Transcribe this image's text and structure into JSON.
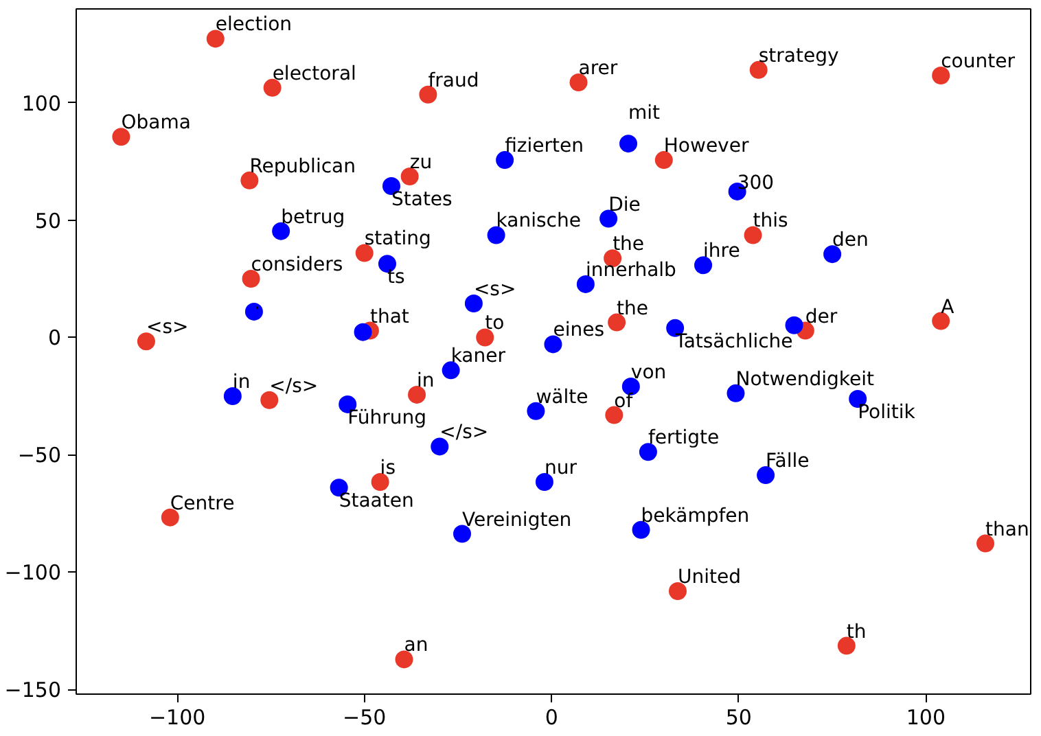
{
  "chart_data": {
    "type": "scatter",
    "marker": "circle",
    "grid": false,
    "xlim": [
      -127,
      128
    ],
    "ylim": [
      -152,
      140
    ],
    "xticks": [
      {
        "value": -100,
        "label": "−100"
      },
      {
        "value": -50,
        "label": "−50"
      },
      0,
      50,
      100
    ],
    "yticks": [
      {
        "value": -150,
        "label": "−150"
      },
      {
        "value": -100,
        "label": "−100"
      },
      {
        "value": -50,
        "label": "−50"
      },
      0,
      50,
      100
    ],
    "series": [
      {
        "color": "#e8382a",
        "x": [
          -89.8,
          -74.6,
          -33,
          -115,
          -80.7,
          -37.9,
          -50,
          -80.3,
          -108.3,
          -48.5,
          -17.8,
          7.2,
          55.3,
          104,
          30,
          53.8,
          16.3,
          17.4,
          67.8,
          104,
          -75.4,
          -36,
          -45.8,
          -101.9,
          -39.4,
          16.7,
          33.7,
          78.8,
          115.9
        ],
        "values": [
          127.3,
          106.4,
          103.5,
          85.5,
          66.9,
          68.6,
          36,
          25,
          -1.7,
          2.9,
          0,
          108.7,
          114,
          111.6,
          75.6,
          43.6,
          33.7,
          6.4,
          2.9,
          7,
          -26.7,
          -24.4,
          -61.6,
          -76.7,
          -137.2,
          -33.1,
          -108.1,
          -131.4,
          -87.8
        ]
      },
      {
        "color": "#0000ff",
        "x": [
          -12.5,
          -42.8,
          -72.3,
          -14.8,
          -43.9,
          -79.5,
          -20.8,
          -50.4,
          -26.9,
          0.4,
          20.5,
          49.6,
          15.2,
          40.5,
          9.1,
          75,
          33,
          64.8,
          -85.2,
          -54.5,
          -29.9,
          -4.2,
          21.2,
          49.2,
          81.8,
          25.8,
          57.2,
          -1.9,
          -56.8,
          -23.9,
          23.9
        ],
        "values": [
          75.6,
          64.5,
          45.3,
          43.6,
          31.4,
          11,
          14.5,
          2.3,
          -14,
          -2.9,
          82.6,
          62.2,
          50.6,
          30.8,
          22.7,
          35.5,
          4,
          5.2,
          -25,
          -28.5,
          -46.5,
          -31.4,
          -20.9,
          -23.8,
          -26.2,
          -48.8,
          -58.7,
          -61.6,
          -64,
          -83.7,
          -82
        ]
      }
    ],
    "annotations": [
      {
        "text": "election",
        "x": -89.8,
        "y": 127.3
      },
      {
        "text": "electoral",
        "x": -74.6,
        "y": 106.4
      },
      {
        "text": "fraud",
        "x": -33,
        "y": 103.5
      },
      {
        "text": "Obama",
        "x": -115,
        "y": 85.5
      },
      {
        "text": "Republican",
        "x": -80.7,
        "y": 66.9
      },
      {
        "text": "zu",
        "x": -37.9,
        "y": 68.6
      },
      {
        "text": "stating",
        "x": -50,
        "y": 36
      },
      {
        "text": "considers",
        "x": -80.3,
        "y": 25
      },
      {
        "text": "<s>",
        "x": -108.3,
        "y": -1.7
      },
      {
        "text": "that",
        "x": -48.5,
        "y": 2.9
      },
      {
        "text": "to",
        "x": -17.8,
        "y": 0
      },
      {
        "text": "arer",
        "x": 7.2,
        "y": 108.7
      },
      {
        "text": "strategy",
        "x": 55.3,
        "y": 114
      },
      {
        "text": "counter",
        "x": 104,
        "y": 111.6
      },
      {
        "text": "However",
        "x": 30,
        "y": 75.6
      },
      {
        "text": "this",
        "x": 53.8,
        "y": 43.6
      },
      {
        "text": "the",
        "x": 16.3,
        "y": 33.7
      },
      {
        "text": "the",
        "x": 17.4,
        "y": 6.4
      },
      {
        "text": "der",
        "x": 67.8,
        "y": 2.9
      },
      {
        "text": "A",
        "x": 104,
        "y": 7
      },
      {
        "text": "</s>",
        "x": -75.4,
        "y": -26.7
      },
      {
        "text": "in",
        "x": -36,
        "y": -24.4
      },
      {
        "text": "is",
        "x": -45.8,
        "y": -61.6
      },
      {
        "text": "Centre",
        "x": -101.9,
        "y": -76.7
      },
      {
        "text": "an",
        "x": -39.4,
        "y": -137.2
      },
      {
        "text": "of",
        "x": 16.7,
        "y": -33.1
      },
      {
        "text": "United",
        "x": 33.7,
        "y": -108.1
      },
      {
        "text": "th",
        "x": 78.8,
        "y": -131.4
      },
      {
        "text": "than",
        "x": 115.9,
        "y": -87.8
      },
      {
        "text": "fizierten",
        "x": -12.5,
        "y": 75.6
      },
      {
        "text": "States",
        "x": -42.8,
        "y": 64.5
      },
      {
        "text": "betrug",
        "x": -72.3,
        "y": 45.3
      },
      {
        "text": "kanische",
        "x": -14.8,
        "y": 43.6
      },
      {
        "text": "ts",
        "x": -43.9,
        "y": 31.4
      },
      {
        "text": ".",
        "x": -79.5,
        "y": 11
      },
      {
        "text": "<s>",
        "x": -20.8,
        "y": 14.5
      },
      {
        "text": "kaner",
        "x": -26.9,
        "y": -14
      },
      {
        "text": "eines",
        "x": 0.4,
        "y": -2.9
      },
      {
        "text": "mit",
        "x": 20.5,
        "y": 82.6
      },
      {
        "text": "300",
        "x": 49.6,
        "y": 62.2
      },
      {
        "text": "Die",
        "x": 15.2,
        "y": 50.6
      },
      {
        "text": "ihre",
        "x": 40.5,
        "y": 30.8
      },
      {
        "text": "innerhalb",
        "x": 9.1,
        "y": 22.7
      },
      {
        "text": "den",
        "x": 75,
        "y": 35.5
      },
      {
        "text": "Tatsächliche",
        "x": 33,
        "y": 4
      },
      {
        "text": "in",
        "x": -85.2,
        "y": -25
      },
      {
        "text": "Führung",
        "x": -54.5,
        "y": -28.5
      },
      {
        "text": "</s>",
        "x": -29.9,
        "y": -46.5
      },
      {
        "text": "wälte",
        "x": -4.2,
        "y": -31.4
      },
      {
        "text": "von",
        "x": 21.2,
        "y": -20.9
      },
      {
        "text": "Notwendigkeit",
        "x": 49.2,
        "y": -23.8
      },
      {
        "text": "Politik",
        "x": 81.8,
        "y": -26.2
      },
      {
        "text": "fertigte",
        "x": 25.8,
        "y": -48.8
      },
      {
        "text": "Fälle",
        "x": 57.2,
        "y": -58.7
      },
      {
        "text": "nur",
        "x": -1.9,
        "y": -61.6
      },
      {
        "text": "Staaten",
        "x": -56.8,
        "y": -64
      },
      {
        "text": "Vereinigten",
        "x": -23.9,
        "y": -83.7
      },
      {
        "text": "bekämpfen",
        "x": 23.9,
        "y": -82
      }
    ]
  }
}
